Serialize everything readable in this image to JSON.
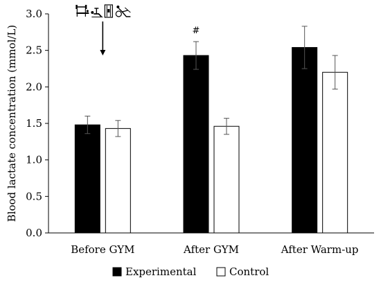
{
  "chart_data": {
    "type": "bar",
    "title": "",
    "xlabel": "",
    "ylabel": "Blood lactate concentration (mmol/L)",
    "ylim": [
      0,
      3.0
    ],
    "yticks": [
      "0.0",
      "0.5",
      "1.0",
      "1.5",
      "2.0",
      "2.5",
      "3.0"
    ],
    "categories": [
      "Before GYM",
      "After GYM",
      "After Warm-up"
    ],
    "series": [
      {
        "name": "Experimental",
        "fill": "#000000",
        "values": [
          1.48,
          2.43,
          2.54
        ],
        "errors": [
          0.12,
          0.19,
          0.29
        ]
      },
      {
        "name": "Control",
        "fill": "#ffffff",
        "values": [
          1.43,
          1.46,
          2.2
        ],
        "errors": [
          0.11,
          0.11,
          0.23
        ]
      }
    ],
    "legend_position": "bottom",
    "grid": false,
    "annotations": [
      {
        "text": "#",
        "category": "After GYM",
        "series": "Experimental"
      }
    ],
    "icon_marker": {
      "icons": [
        "weightlifting-icon",
        "bench-press-icon",
        "leg-press-icon",
        "rowing-machine-icon"
      ],
      "category": "Before GYM",
      "arrow": "down"
    }
  }
}
